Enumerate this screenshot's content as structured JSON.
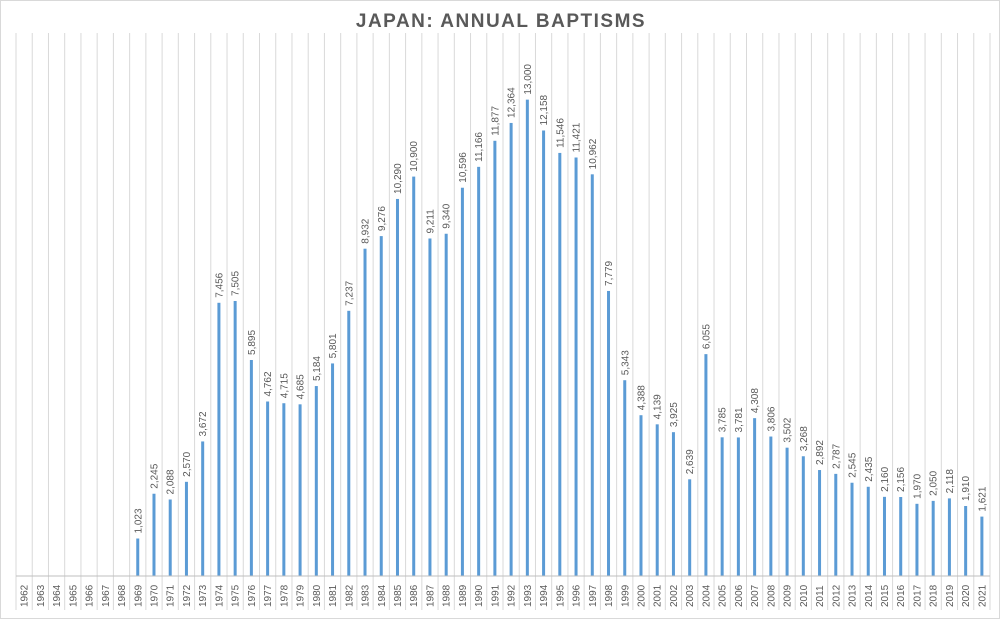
{
  "chart_data": {
    "type": "bar",
    "title": "JAPAN: ANNUAL BAPTISMS",
    "xlabel": "",
    "ylabel": "",
    "ylim": [
      0,
      14000
    ],
    "grid": "vertical",
    "bar_color": "#5b9bd5",
    "categories": [
      "1962",
      "1963",
      "1964",
      "1965",
      "1966",
      "1967",
      "1968",
      "1969",
      "1970",
      "1971",
      "1972",
      "1973",
      "1974",
      "1975",
      "1976",
      "1977",
      "1978",
      "1979",
      "1980",
      "1981",
      "1982",
      "1983",
      "1984",
      "1985",
      "1986",
      "1987",
      "1988",
      "1989",
      "1990",
      "1991",
      "1992",
      "1993",
      "1994",
      "1995",
      "1996",
      "1997",
      "1998",
      "1999",
      "2000",
      "2001",
      "2002",
      "2003",
      "2004",
      "2005",
      "2006",
      "2007",
      "2008",
      "2009",
      "2010",
      "2011",
      "2012",
      "2013",
      "2014",
      "2015",
      "2016",
      "2017",
      "2018",
      "2019",
      "2020",
      "2021"
    ],
    "values": [
      null,
      null,
      null,
      null,
      null,
      null,
      null,
      1023,
      2245,
      2088,
      2570,
      3672,
      7456,
      7505,
      5895,
      4762,
      4715,
      4685,
      5184,
      5801,
      7237,
      8932,
      9276,
      10290,
      10900,
      9211,
      9340,
      10596,
      11166,
      11877,
      12364,
      13000,
      12158,
      11546,
      11421,
      10962,
      7779,
      5343,
      4388,
      4139,
      3925,
      2639,
      6055,
      3785,
      3781,
      4308,
      3806,
      3502,
      3268,
      2892,
      2787,
      2545,
      2435,
      2160,
      2156,
      1970,
      2050,
      2118,
      1910,
      1621
    ],
    "data_labels": [
      null,
      null,
      null,
      null,
      null,
      null,
      null,
      "1,023",
      "2,245",
      "2,088",
      "2,570",
      "3,672",
      "7,456",
      "7,505",
      "5,895",
      "4,762",
      "4,715",
      "4,685",
      "5,184",
      "5,801",
      "7,237",
      "8,932",
      "9,276",
      "10,290",
      "10,900",
      "9,211",
      "9,340",
      "10,596",
      "11,166",
      "11,877",
      "12,364",
      "13,000",
      "12,158",
      "11,546",
      "11,421",
      "10,962",
      "7,779",
      "5,343",
      "4,388",
      "4,139",
      "3,925",
      "2,639",
      "6,055",
      "3,785",
      "3,781",
      "4,308",
      "3,806",
      "3,502",
      "3,268",
      "2,892",
      "2,787",
      "2,545",
      "2,435",
      "2,160",
      "2,156",
      "1,970",
      "2,050",
      "2,118",
      "1,910",
      "1,621"
    ]
  }
}
